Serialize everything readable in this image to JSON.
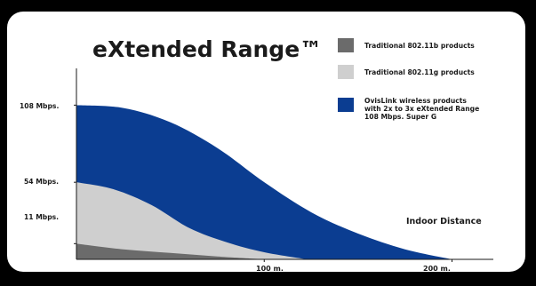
{
  "chart_data": {
    "type": "area",
    "title": "eXtended Range™",
    "xlabel": "Indoor Distance",
    "ylabel": "",
    "x_ticks": [
      {
        "value": 100,
        "label": "100 m."
      },
      {
        "value": 200,
        "label": "200 m."
      }
    ],
    "y_ticks": [
      {
        "value": 11,
        "label": "11 Mbps."
      },
      {
        "value": 54,
        "label": "54 Mbps."
      },
      {
        "value": 108,
        "label": "108 Mbps."
      }
    ],
    "xlim": [
      0,
      222
    ],
    "ylim": [
      0,
      130
    ],
    "grid": false,
    "legend_position": "top-right",
    "series": [
      {
        "key": "b",
        "name": "Traditional 802.11b products",
        "color": "#6b6b6b",
        "x": [
          0,
          25,
          50,
          75,
          100
        ],
        "y": [
          11,
          7,
          4.5,
          2,
          0
        ]
      },
      {
        "key": "g",
        "name": "Traditional 802.11g products",
        "color": "#cfcfcf",
        "x": [
          0,
          20,
          40,
          60,
          80,
          100,
          123
        ],
        "y": [
          54,
          49,
          38,
          22,
          12,
          5,
          0
        ]
      },
      {
        "key": "x",
        "name": "OvisLink wireless products with 2x to 3x eXtended Range 108 Mbps. Super G",
        "name_lines": [
          "OvisLink wireless products",
          "with 2x to 3x eXtended Range",
          "108 Mbps. Super G"
        ],
        "color": "#0b3d91",
        "x": [
          0,
          25,
          50,
          75,
          100,
          125,
          150,
          175,
          200
        ],
        "y": [
          108,
          106,
          96,
          78,
          54,
          33,
          18,
          7,
          0
        ]
      }
    ]
  }
}
